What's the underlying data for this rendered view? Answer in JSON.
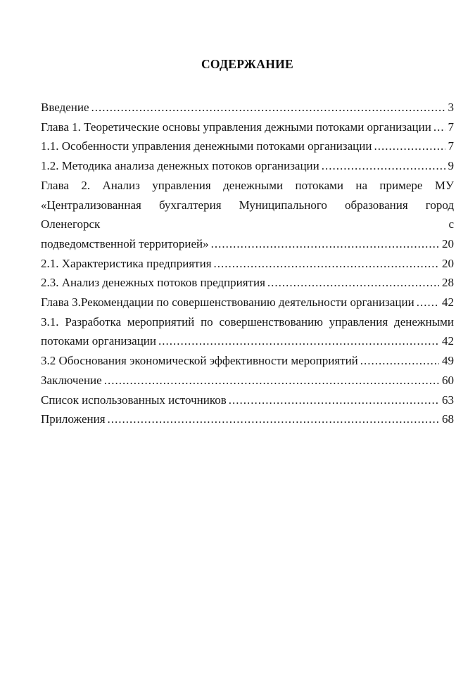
{
  "page": {
    "title": "СОДЕРЖАНИЕ"
  },
  "toc": {
    "entries": [
      {
        "wrapped_lines": [],
        "text": "Введение",
        "page": "3"
      },
      {
        "wrapped_lines": [],
        "text": "Глава 1. Теоретические основы управления дежными потоками организации",
        "page": "7"
      },
      {
        "wrapped_lines": [],
        "text": "1.1. Особенности управления денежными потоками организации",
        "page": "7"
      },
      {
        "wrapped_lines": [],
        "text": "1.2. Методика анализа денежных потоков организации",
        "page": "9"
      },
      {
        "wrapped_lines": [
          "Глава 2. Анализ управления денежными потоками на примере МУ",
          "«Централизованная бухгалтерия Муниципального образования город Оленегорск с"
        ],
        "text": "подведомственной территорией»",
        "page": "20"
      },
      {
        "wrapped_lines": [],
        "text": "2.1. Характеристика предприятия",
        "page": "20"
      },
      {
        "wrapped_lines": [],
        "text": "2.3. Анализ денежных потоков предприятия",
        "page": "28"
      },
      {
        "wrapped_lines": [],
        "text": "Глава 3.Рекомендации по совершенствованию деятельности организации",
        "page": "42"
      },
      {
        "wrapped_lines": [
          "3.1. Разработка мероприятий по совершенствованию управления денежными"
        ],
        "text": "потоками организации",
        "page": "42"
      },
      {
        "wrapped_lines": [],
        "text": "3.2 Обоснования экономической эффективности мероприятий",
        "page": "49"
      },
      {
        "wrapped_lines": [],
        "text": "Заключение",
        "page": "60"
      },
      {
        "wrapped_lines": [],
        "text": "Список использованных источников",
        "page": "63"
      },
      {
        "wrapped_lines": [],
        "text": "Приложения",
        "page": "68"
      }
    ]
  }
}
